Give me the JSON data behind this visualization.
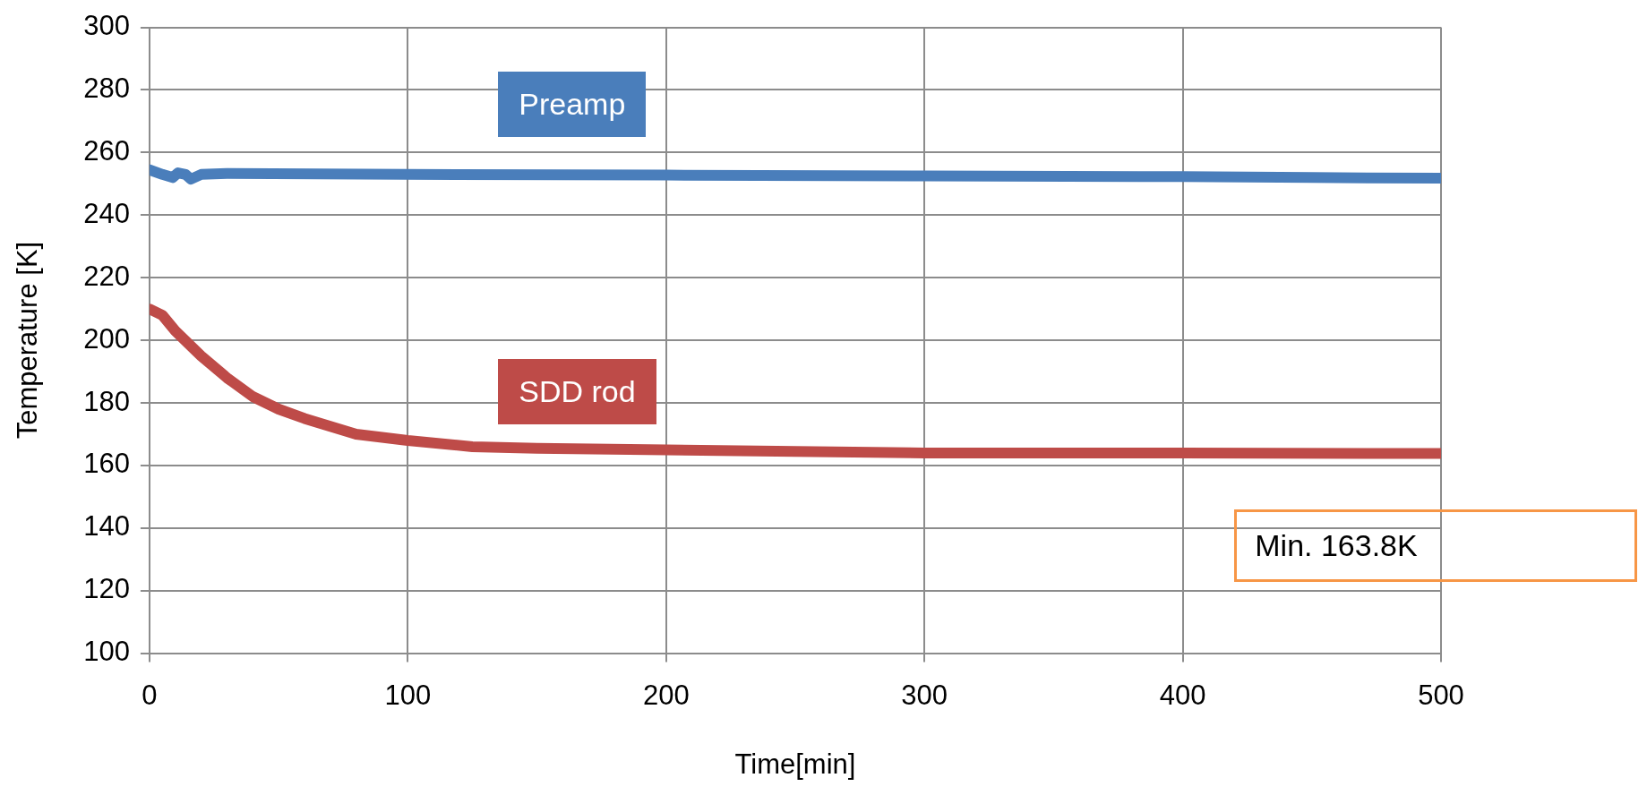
{
  "chart_data": {
    "type": "line",
    "xlabel": "Time[min]",
    "ylabel": "Temperature [K]",
    "xlim": [
      0,
      500
    ],
    "xticks": [
      0,
      100,
      200,
      300,
      400,
      500
    ],
    "ylim": [
      100,
      300
    ],
    "yticks": [
      100,
      120,
      140,
      160,
      180,
      200,
      220,
      240,
      260,
      280,
      300
    ],
    "grid": true,
    "legend": false,
    "marker": "none",
    "line_style": "solid",
    "series": [
      {
        "name": "Preamp",
        "color": "#4a7ebb",
        "x": [
          0,
          5,
          9,
          11,
          14,
          16,
          20,
          30,
          100,
          200,
          300,
          400,
          450,
          500
        ],
        "values": [
          254.5,
          253,
          252,
          253.5,
          253,
          251.5,
          253,
          253.3,
          253,
          252.8,
          252.5,
          252.3,
          252,
          251.8
        ]
      },
      {
        "name": "SDD rod",
        "color": "#be4b48",
        "x": [
          0,
          5,
          10,
          20,
          30,
          40,
          50,
          60,
          80,
          100,
          125,
          150,
          200,
          250,
          300,
          400,
          500
        ],
        "values": [
          210,
          208,
          203,
          195,
          188,
          182,
          178,
          175,
          170,
          168,
          166,
          165.5,
          165,
          164.5,
          164,
          164,
          163.8
        ]
      }
    ],
    "annotations": [
      "Min. 163.8K"
    ]
  }
}
